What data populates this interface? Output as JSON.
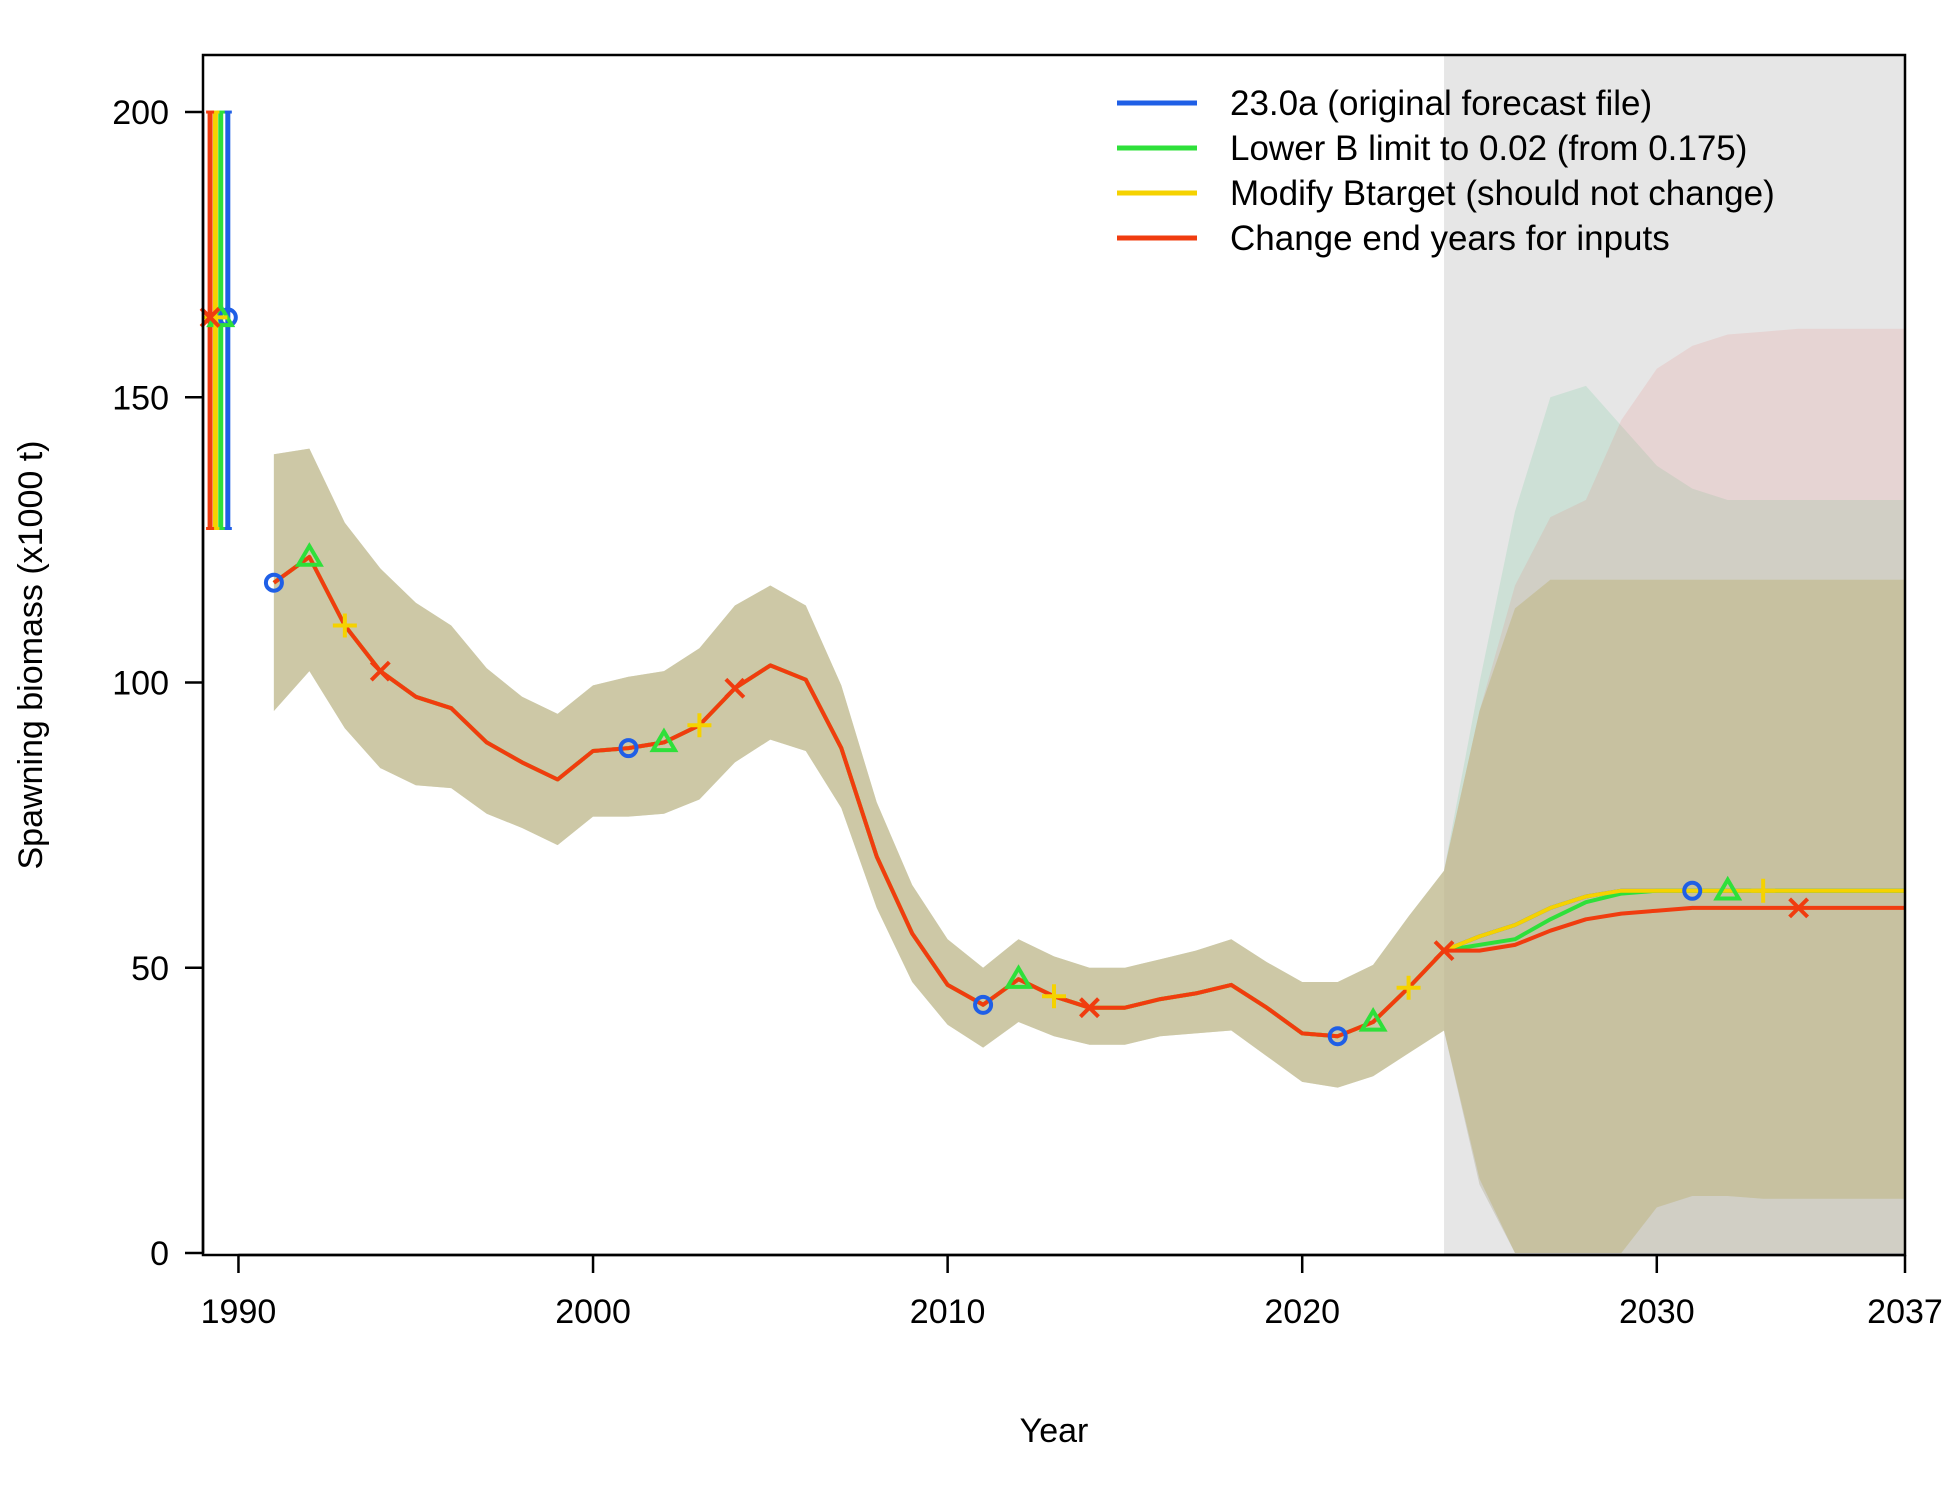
{
  "chart_data": {
    "type": "line",
    "xlabel": "Year",
    "ylabel": "Spawning biomass (x1000 t)",
    "xlim": [
      1989,
      2037
    ],
    "ylim": [
      0,
      210
    ],
    "x_ticks": [
      "1990",
      "2000",
      "2010",
      "2020",
      "2030",
      "2037"
    ],
    "y_ticks": [
      "0",
      "50",
      "100",
      "150",
      "200"
    ],
    "forecast_start": 2024,
    "shading_color": "#e6e6e6",
    "legend_position": "top-right",
    "initial_values": [
      {
        "series": "23.0a (original forecast file)",
        "x": 1989.7,
        "value": 164,
        "lower": 127,
        "upper": 200
      },
      {
        "series": "Lower B limit to 0.02 (from 0.175)",
        "x": 1989.5,
        "value": 164,
        "lower": 127,
        "upper": 200
      },
      {
        "series": "Modify Btarget (should not change)",
        "x": 1989.35,
        "value": 164,
        "lower": 127,
        "upper": 200
      },
      {
        "series": "Change end years for inputs",
        "x": 1989.2,
        "value": 164,
        "lower": 127,
        "upper": 200
      }
    ],
    "series": [
      {
        "name": "23.0a (original forecast file)",
        "color": "#1f5fe6",
        "marker": "circle",
        "x": [
          1991,
          1992,
          1993,
          1994,
          1995,
          1996,
          1997,
          1998,
          1999,
          2000,
          2001,
          2002,
          2003,
          2004,
          2005,
          2006,
          2007,
          2008,
          2009,
          2010,
          2011,
          2012,
          2013,
          2014,
          2015,
          2016,
          2017,
          2018,
          2019,
          2020,
          2021,
          2022,
          2023,
          2024,
          2025,
          2026,
          2027,
          2028,
          2029,
          2030,
          2031,
          2032,
          2033,
          2034,
          2035,
          2036,
          2037
        ],
        "values": [
          117.5,
          122,
          110,
          102,
          97.5,
          95.5,
          89.5,
          86,
          83,
          88,
          88.5,
          89.5,
          92.5,
          99,
          103,
          100.5,
          88.5,
          69.5,
          56,
          47,
          43.5,
          48,
          45,
          43,
          43,
          44.5,
          45.5,
          47,
          43,
          38.5,
          38,
          40.5,
          46.5,
          53,
          55.5,
          57.5,
          60.5,
          62.5,
          63.5,
          63.5,
          63.5,
          63.5,
          63.5,
          63.5,
          63.5,
          63.5,
          63.5
        ],
        "band_lower": [
          95,
          102,
          92,
          85,
          82,
          81.5,
          77,
          74.5,
          71.5,
          76.5,
          76.5,
          77,
          79.5,
          86,
          90,
          88,
          78,
          60.5,
          47.5,
          40,
          36,
          40.5,
          38,
          36.5,
          36.5,
          38,
          38.5,
          39,
          34.5,
          30,
          29,
          31,
          35,
          39,
          13,
          0,
          0,
          0,
          0,
          8,
          10,
          10,
          9.5,
          9.5,
          9.5,
          9.5,
          9.5
        ],
        "band_upper": [
          140,
          141,
          128,
          120,
          114,
          110,
          102.5,
          97.5,
          94.5,
          99.5,
          101,
          102,
          106,
          113.5,
          117,
          113.5,
          99.5,
          79,
          64.5,
          55,
          50,
          55,
          52,
          50,
          50,
          51.5,
          53,
          55,
          51,
          47.5,
          47.5,
          50.5,
          59,
          67,
          95,
          113,
          118,
          118,
          118,
          118,
          118,
          118,
          118,
          118,
          118,
          118,
          118
        ]
      },
      {
        "name": "Lower B limit to 0.02 (from 0.175)",
        "color": "#2ee03a",
        "marker": "triangle",
        "x": [
          1991,
          1992,
          1993,
          1994,
          1995,
          1996,
          1997,
          1998,
          1999,
          2000,
          2001,
          2002,
          2003,
          2004,
          2005,
          2006,
          2007,
          2008,
          2009,
          2010,
          2011,
          2012,
          2013,
          2014,
          2015,
          2016,
          2017,
          2018,
          2019,
          2020,
          2021,
          2022,
          2023,
          2024,
          2025,
          2026,
          2027,
          2028,
          2029,
          2030,
          2031,
          2032,
          2033,
          2034,
          2035,
          2036,
          2037
        ],
        "values": [
          117.5,
          122,
          110,
          102,
          97.5,
          95.5,
          89.5,
          86,
          83,
          88,
          88.5,
          89.5,
          92.5,
          99,
          103,
          100.5,
          88.5,
          69.5,
          56,
          47,
          43.5,
          48,
          45,
          43,
          43,
          44.5,
          45.5,
          47,
          43,
          38.5,
          38,
          40.5,
          46.5,
          53,
          54,
          55,
          58.5,
          61.5,
          63,
          63.5,
          63.5,
          63.5,
          63.5,
          63.5,
          63.5,
          63.5,
          63.5
        ],
        "band_lower": [
          95,
          102,
          92,
          85,
          82,
          81.5,
          77,
          74.5,
          71.5,
          76.5,
          76.5,
          77,
          79.5,
          86,
          90,
          88,
          78,
          60.5,
          47.5,
          40,
          36,
          40.5,
          38,
          36.5,
          36.5,
          38,
          38.5,
          39,
          34.5,
          30,
          29,
          31,
          35,
          39,
          12,
          0,
          0,
          0,
          0,
          0,
          0,
          0,
          0,
          0,
          0,
          0,
          0
        ],
        "band_upper": [
          140,
          141,
          128,
          120,
          114,
          110,
          102.5,
          97.5,
          94.5,
          99.5,
          101,
          102,
          106,
          113.5,
          117,
          113.5,
          99.5,
          79,
          64.5,
          55,
          50,
          55,
          52,
          50,
          50,
          51.5,
          53,
          55,
          51,
          47.5,
          47.5,
          50.5,
          59,
          67,
          100,
          130,
          150,
          152,
          145,
          138,
          134,
          132,
          132,
          132,
          132,
          132,
          132
        ]
      },
      {
        "name": "Modify Btarget (should not change)",
        "color": "#f5d200",
        "marker": "plus",
        "x": [
          1991,
          1992,
          1993,
          1994,
          1995,
          1996,
          1997,
          1998,
          1999,
          2000,
          2001,
          2002,
          2003,
          2004,
          2005,
          2006,
          2007,
          2008,
          2009,
          2010,
          2011,
          2012,
          2013,
          2014,
          2015,
          2016,
          2017,
          2018,
          2019,
          2020,
          2021,
          2022,
          2023,
          2024,
          2025,
          2026,
          2027,
          2028,
          2029,
          2030,
          2031,
          2032,
          2033,
          2034,
          2035,
          2036,
          2037
        ],
        "values": [
          117.5,
          122,
          110,
          102,
          97.5,
          95.5,
          89.5,
          86,
          83,
          88,
          88.5,
          89.5,
          92.5,
          99,
          103,
          100.5,
          88.5,
          69.5,
          56,
          47,
          43.5,
          48,
          45,
          43,
          43,
          44.5,
          45.5,
          47,
          43,
          38.5,
          38,
          40.5,
          46.5,
          53,
          55.5,
          57.5,
          60.5,
          62.5,
          63.5,
          63.5,
          63.5,
          63.5,
          63.5,
          63.5,
          63.5,
          63.5,
          63.5
        ],
        "band_lower": [
          95,
          102,
          92,
          85,
          82,
          81.5,
          77,
          74.5,
          71.5,
          76.5,
          76.5,
          77,
          79.5,
          86,
          90,
          88,
          78,
          60.5,
          47.5,
          40,
          36,
          40.5,
          38,
          36.5,
          36.5,
          38,
          38.5,
          39,
          34.5,
          30,
          29,
          31,
          35,
          39,
          13,
          0,
          0,
          0,
          0,
          8,
          10,
          10,
          9.5,
          9.5,
          9.5,
          9.5,
          9.5
        ],
        "band_upper": [
          140,
          141,
          128,
          120,
          114,
          110,
          102.5,
          97.5,
          94.5,
          99.5,
          101,
          102,
          106,
          113.5,
          117,
          113.5,
          99.5,
          79,
          64.5,
          55,
          50,
          55,
          52,
          50,
          50,
          51.5,
          53,
          55,
          51,
          47.5,
          47.5,
          50.5,
          59,
          67,
          95,
          113,
          118,
          118,
          118,
          118,
          118,
          118,
          118,
          118,
          118,
          118,
          118
        ]
      },
      {
        "name": "Change end years for inputs",
        "color": "#f03c0f",
        "marker": "x",
        "x": [
          1991,
          1992,
          1993,
          1994,
          1995,
          1996,
          1997,
          1998,
          1999,
          2000,
          2001,
          2002,
          2003,
          2004,
          2005,
          2006,
          2007,
          2008,
          2009,
          2010,
          2011,
          2012,
          2013,
          2014,
          2015,
          2016,
          2017,
          2018,
          2019,
          2020,
          2021,
          2022,
          2023,
          2024,
          2025,
          2026,
          2027,
          2028,
          2029,
          2030,
          2031,
          2032,
          2033,
          2034,
          2035,
          2036,
          2037
        ],
        "values": [
          117.5,
          122,
          110,
          102,
          97.5,
          95.5,
          89.5,
          86,
          83,
          88,
          88.5,
          89.5,
          92.5,
          99,
          103,
          100.5,
          88.5,
          69.5,
          56,
          47,
          43.5,
          48,
          45,
          43,
          43,
          44.5,
          45.5,
          47,
          43,
          38.5,
          38,
          40.5,
          46.5,
          53,
          53,
          54,
          56.5,
          58.5,
          59.5,
          60,
          60.5,
          60.5,
          60.5,
          60.5,
          60.5,
          60.5,
          60.5
        ],
        "band_lower": [
          95,
          102,
          92,
          85,
          82,
          81.5,
          77,
          74.5,
          71.5,
          76.5,
          76.5,
          77,
          79.5,
          86,
          90,
          88,
          78,
          60.5,
          47.5,
          40,
          36,
          40.5,
          38,
          36.5,
          36.5,
          38,
          38.5,
          39,
          34.5,
          30,
          29,
          31,
          35,
          39,
          12,
          0,
          0,
          0,
          0,
          0,
          0,
          0,
          0,
          0,
          0,
          0,
          0
        ],
        "band_upper": [
          140,
          141,
          128,
          120,
          114,
          110,
          102.5,
          97.5,
          94.5,
          99.5,
          101,
          102,
          106,
          113.5,
          117,
          113.5,
          99.5,
          79,
          64.5,
          55,
          50,
          55,
          52,
          50,
          50,
          51.5,
          53,
          55,
          51,
          47.5,
          47.5,
          50.5,
          59,
          67,
          95,
          117,
          129,
          132,
          146,
          155,
          159,
          161,
          161.5,
          162,
          162,
          162,
          162
        ]
      }
    ],
    "markers": [
      {
        "series": "23.0a (original forecast file)",
        "x": [
          1991,
          2001,
          2011,
          2021,
          2031
        ]
      },
      {
        "series": "Lower B limit to 0.02 (from 0.175)",
        "x": [
          1992,
          2002,
          2012,
          2022,
          2032
        ]
      },
      {
        "series": "Modify Btarget (should not change)",
        "x": [
          1993,
          2003,
          2013,
          2023,
          2033
        ]
      },
      {
        "series": "Change end years for inputs",
        "x": [
          1994,
          2004,
          2014,
          2024,
          2034
        ]
      }
    ]
  }
}
